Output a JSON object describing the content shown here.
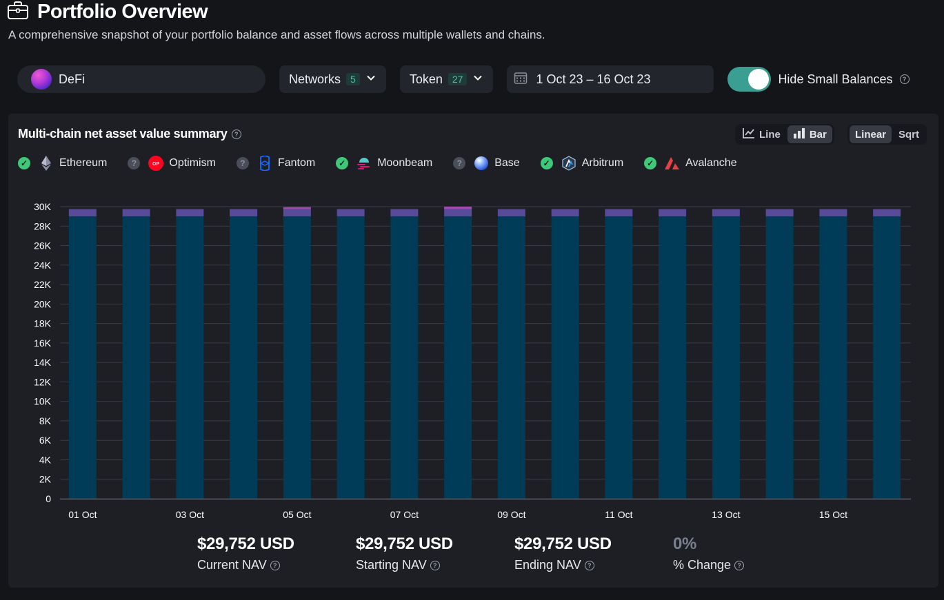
{
  "header": {
    "title": "Portfolio Overview",
    "subtitle": "A comprehensive snapshot of your portfolio balance and asset flows across multiple wallets and chains."
  },
  "filters": {
    "wallet_label": "DeFi",
    "networks_label": "Networks",
    "networks_count": "5",
    "token_label": "Token",
    "token_count": "27",
    "date_range": "1 Oct 23 – 16 Oct 23",
    "hide_small_balances_label": "Hide Small Balances",
    "hide_small_balances_on": true
  },
  "card": {
    "title": "Multi-chain net asset value summary",
    "chart_modes": [
      {
        "label": "Line",
        "icon": "line-chart-icon",
        "active": false
      },
      {
        "label": "Bar",
        "icon": "bar-chart-icon",
        "active": true
      }
    ],
    "scale_modes": [
      {
        "label": "Linear",
        "active": true
      },
      {
        "label": "Sqrt",
        "active": false
      }
    ],
    "legend": [
      {
        "label": "Ethereum",
        "status": "checked",
        "icon": "ethereum-icon",
        "color": "#8b8ea6"
      },
      {
        "label": "Optimism",
        "status": "unknown",
        "icon": "optimism-icon",
        "color": "#ff0420"
      },
      {
        "label": "Fantom",
        "status": "unknown",
        "icon": "fantom-icon",
        "color": "#1969ff"
      },
      {
        "label": "Moonbeam",
        "status": "checked",
        "icon": "moonbeam-icon",
        "color": "#e1147b"
      },
      {
        "label": "Base",
        "status": "unknown",
        "icon": "base-icon",
        "color": "#0052ff"
      },
      {
        "label": "Arbitrum",
        "status": "checked",
        "icon": "arbitrum-icon",
        "color": "#28a0f0"
      },
      {
        "label": "Avalanche",
        "status": "checked",
        "icon": "avalanche-icon",
        "color": "#e84142"
      }
    ]
  },
  "chart_data": {
    "type": "bar",
    "stacked": true,
    "categories": [
      "01 Oct",
      "02 Oct",
      "03 Oct",
      "04 Oct",
      "05 Oct",
      "06 Oct",
      "07 Oct",
      "08 Oct",
      "09 Oct",
      "10 Oct",
      "11 Oct",
      "12 Oct",
      "13 Oct",
      "14 Oct",
      "15 Oct",
      "16 Oct"
    ],
    "x_tick_labels": [
      "01 Oct",
      "03 Oct",
      "05 Oct",
      "07 Oct",
      "09 Oct",
      "11 Oct",
      "13 Oct",
      "15 Oct"
    ],
    "y_ticks": [
      "0",
      "2K",
      "4K",
      "6K",
      "8K",
      "10K",
      "12K",
      "14K",
      "16K",
      "18K",
      "20K",
      "22K",
      "24K",
      "26K",
      "28K",
      "30K"
    ],
    "ylim": [
      0,
      30000
    ],
    "grid": true,
    "series": [
      {
        "color": "#003b58",
        "values": [
          29000,
          29000,
          29000,
          29000,
          29000,
          29000,
          29000,
          29000,
          29000,
          29000,
          29000,
          29000,
          29000,
          29000,
          29000,
          29000
        ]
      },
      {
        "color": "#5a4a9a",
        "values": [
          750,
          750,
          750,
          750,
          750,
          750,
          750,
          750,
          750,
          750,
          750,
          750,
          750,
          750,
          750,
          750
        ]
      },
      {
        "color": "#a04ab0",
        "values": [
          0,
          0,
          0,
          0,
          200,
          0,
          0,
          250,
          0,
          0,
          0,
          0,
          0,
          0,
          0,
          0
        ]
      }
    ]
  },
  "stats": [
    {
      "value": "$29,752 USD",
      "label": "Current NAV",
      "muted": false
    },
    {
      "value": "$29,752 USD",
      "label": "Starting NAV",
      "muted": false
    },
    {
      "value": "$29,752 USD",
      "label": "Ending NAV",
      "muted": false
    },
    {
      "value": "0%",
      "label": "% Change",
      "muted": true
    }
  ],
  "colors": {
    "accent": "#3a9e93",
    "background": "#141519",
    "card": "#1d1f25"
  }
}
